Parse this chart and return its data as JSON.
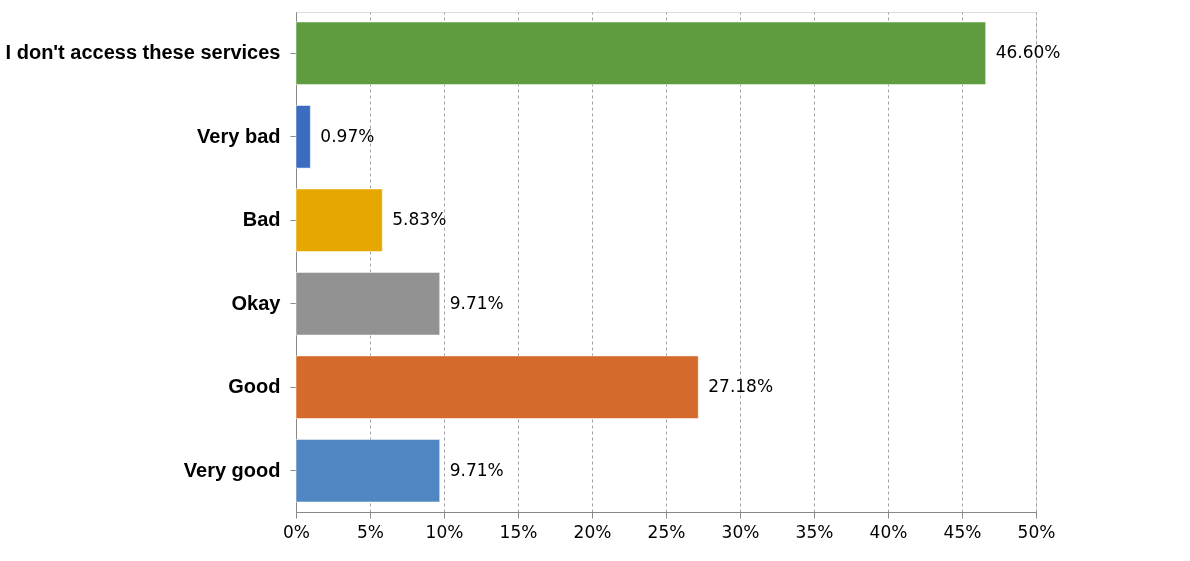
{
  "chart_data": {
    "type": "bar",
    "orientation": "horizontal",
    "categories": [
      "I don't access these services",
      "Very bad",
      "Bad",
      "Okay",
      "Good",
      "Very good"
    ],
    "values": [
      46.6,
      0.97,
      5.83,
      9.71,
      27.18,
      9.71
    ],
    "colors": [
      "#5e9c3f",
      "#3b6cc0",
      "#e6a700",
      "#929292",
      "#d46a2b",
      "#5087c2"
    ],
    "value_labels": [
      "46.60%",
      "0.97%",
      "5.83%",
      "9.71%",
      "27.18%",
      "9.71%"
    ],
    "xlim": [
      0,
      50
    ],
    "xticks": [
      {
        "value": 0,
        "label": "0%"
      },
      {
        "value": 5,
        "label": "5%"
      },
      {
        "value": 10,
        "label": "10%"
      },
      {
        "value": 15,
        "label": "15%"
      },
      {
        "value": 20,
        "label": "20%"
      },
      {
        "value": 25,
        "label": "25%"
      },
      {
        "value": 30,
        "label": "30%"
      },
      {
        "value": 35,
        "label": "35%"
      },
      {
        "value": 40,
        "label": "40%"
      },
      {
        "value": 45,
        "label": "45%"
      },
      {
        "value": 50,
        "label": "50%"
      }
    ],
    "grid": "x"
  }
}
